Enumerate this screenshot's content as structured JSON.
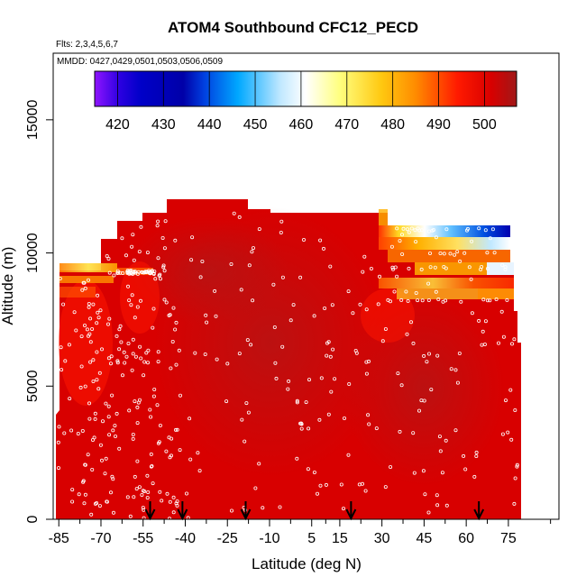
{
  "chart_data": {
    "type": "heatmap",
    "title": "ATOM4 Southbound CFC12_PECD",
    "subtitle_flights": "Flts: 2,3,4,5,6,7",
    "subtitle_dates": "MMDD: 0427,0429,0501,0503,0506,0509",
    "xlabel": "Latitude (deg N)",
    "ylabel": "Altitude (m)",
    "xlim": [
      -87,
      93
    ],
    "ylim": [
      0,
      17500
    ],
    "x_ticks": [
      -85,
      -70,
      -55,
      -40,
      -25,
      -10,
      5,
      15,
      30,
      45,
      60,
      75
    ],
    "y_ticks": [
      0,
      5000,
      10000,
      15000
    ],
    "colorbar": {
      "range": [
        415,
        507
      ],
      "ticks": [
        420,
        430,
        440,
        450,
        460,
        470,
        480,
        490,
        500
      ],
      "colors": [
        "#8f14ff",
        "#1a00d0",
        "#0000a8",
        "#0040e0",
        "#00a8ff",
        "#a8e0ff",
        "#ffffff",
        "#ffff80",
        "#ffd020",
        "#ff8c00",
        "#ff2000",
        "#e00000",
        "#a01818"
      ]
    },
    "field_description": "CFC12 mixing ratio mostly 495-505 throughout; low values (420-470) near 10-11 km north of 30N",
    "airport_arrows_lat": [
      -52.5,
      -41,
      -18.5,
      19,
      64.5
    ]
  }
}
